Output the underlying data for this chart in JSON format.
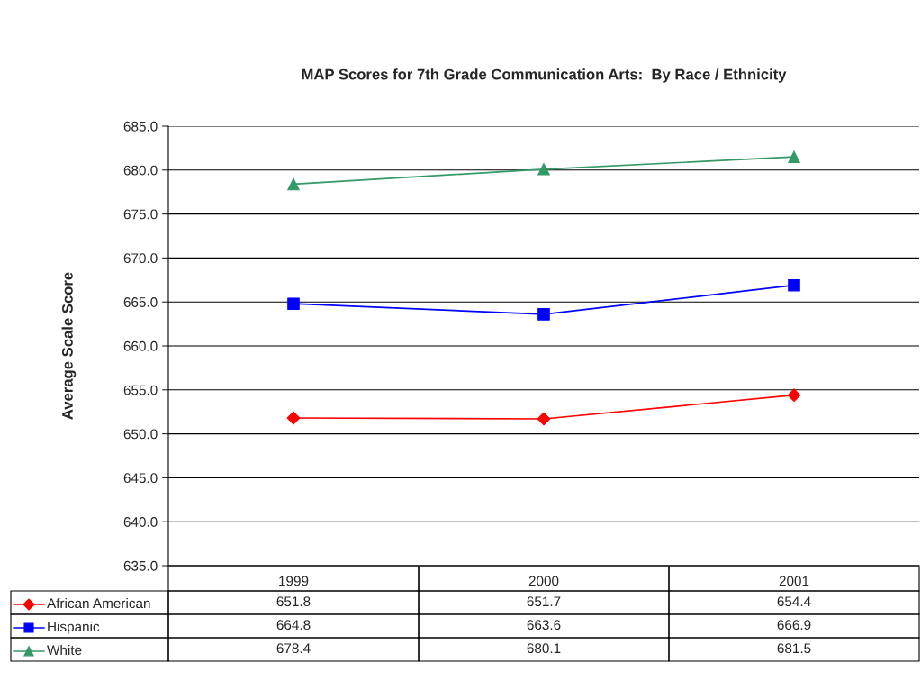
{
  "chart_data": {
    "type": "line",
    "title": "MAP Scores for 7th Grade Communication Arts:  By Race / Ethnicity",
    "ylabel": "Average Scale Score",
    "categories": [
      "1999",
      "2000",
      "2001"
    ],
    "series": [
      {
        "name": "African American",
        "color": "#ff0000",
        "marker": "diamond",
        "values": [
          651.8,
          651.7,
          654.4
        ]
      },
      {
        "name": "Hispanic",
        "color": "#0000ff",
        "marker": "square",
        "values": [
          664.8,
          663.6,
          666.9
        ]
      },
      {
        "name": "White",
        "color": "#339966",
        "marker": "triangle",
        "values": [
          678.4,
          680.1,
          681.5
        ]
      }
    ],
    "ylim": [
      635,
      685
    ],
    "yticks": [
      {
        "value": 635,
        "label": "635.0"
      },
      {
        "value": 640,
        "label": "640.0"
      },
      {
        "value": 645,
        "label": "645.0"
      },
      {
        "value": 650,
        "label": "650.0"
      },
      {
        "value": 655,
        "label": "655.0"
      },
      {
        "value": 660,
        "label": "660.0"
      },
      {
        "value": 665,
        "label": "665.0"
      },
      {
        "value": 670,
        "label": "670.0"
      },
      {
        "value": 675,
        "label": "675.0"
      },
      {
        "value": 680,
        "label": "680.0"
      },
      {
        "value": 685,
        "label": "685.0"
      }
    ],
    "grid": "y",
    "legend": "bottom",
    "data_labels": true,
    "line_style": "solid"
  }
}
